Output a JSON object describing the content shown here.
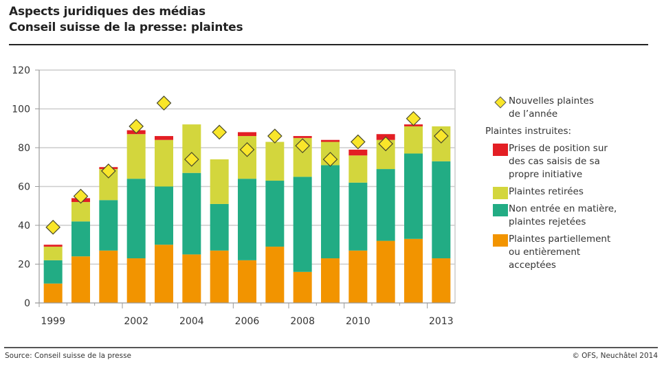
{
  "header": {
    "title_line1": "Aspects juridiques des médias",
    "title_line2": "Conseil suisse de la presse: plaintes"
  },
  "footer": {
    "source": "Source: Conseil suisse de la presse",
    "copyright": "© OFS, Neuchâtel 2014"
  },
  "legend": {
    "diamond_label_line1": "Nouvelles plaintes",
    "diamond_label_line2": "de l’année",
    "heading": "Plaintes instruites:",
    "items": [
      {
        "key": "red",
        "line1": "Prises de position sur",
        "line2": "des cas saisis de sa",
        "line3": "propre initiative"
      },
      {
        "key": "yellow",
        "line1": "Plaintes retirées"
      },
      {
        "key": "green",
        "line1": "Non entrée en matière,",
        "line2": "plaintes rejetées"
      },
      {
        "key": "orange",
        "line1": "Plaintes partiellement",
        "line2": "ou entièrement",
        "line3": "acceptées"
      }
    ]
  },
  "colors": {
    "orange": "#f29400",
    "green": "#22ac84",
    "yellow": "#d3d63d",
    "red": "#e31e24",
    "diamond": "#f9e62a",
    "grid": "#cccccc"
  },
  "chart_data": {
    "type": "bar",
    "stacked": true,
    "title": "Conseil suisse de la presse: plaintes",
    "xlabel": "",
    "ylabel": "",
    "ylim": [
      0,
      120
    ],
    "yticks": [
      0,
      20,
      40,
      60,
      80,
      100,
      120
    ],
    "grid": true,
    "legend_position": "right",
    "categories": [
      "1999",
      "2000",
      "2001",
      "2002",
      "2003",
      "2004",
      "2005",
      "2006",
      "2007",
      "2008",
      "2009",
      "2010",
      "2011",
      "2012",
      "2013"
    ],
    "xtick_labels": [
      "1999",
      "",
      "",
      "2002",
      "",
      "2004",
      "",
      "2006",
      "",
      "2008",
      "",
      "2010",
      "",
      "",
      "2013"
    ],
    "series": [
      {
        "name": "Plaintes partiellement ou entièrement acceptées",
        "color_key": "orange",
        "values": [
          10,
          24,
          27,
          23,
          30,
          25,
          27,
          22,
          29,
          16,
          23,
          27,
          32,
          33,
          23
        ]
      },
      {
        "name": "Non entrée en matière, plaintes rejetées",
        "color_key": "green",
        "values": [
          12,
          18,
          26,
          41,
          30,
          42,
          24,
          42,
          34,
          49,
          48,
          35,
          37,
          44,
          50
        ]
      },
      {
        "name": "Plaintes retirées",
        "color_key": "yellow",
        "values": [
          7,
          10,
          16,
          23,
          24,
          25,
          23,
          22,
          20,
          20,
          12,
          14,
          15,
          14,
          18
        ]
      },
      {
        "name": "Prises de position sur des cas saisis de sa propre initiative",
        "color_key": "red",
        "values": [
          1,
          2,
          1,
          2,
          2,
          0,
          0,
          2,
          0,
          1,
          1,
          3,
          3,
          1,
          0
        ]
      }
    ],
    "markers": {
      "name": "Nouvelles plaintes de l’année",
      "type": "diamond",
      "values": [
        39,
        55,
        68,
        91,
        103,
        74,
        88,
        79,
        86,
        81,
        74,
        83,
        82,
        95,
        86
      ]
    }
  }
}
